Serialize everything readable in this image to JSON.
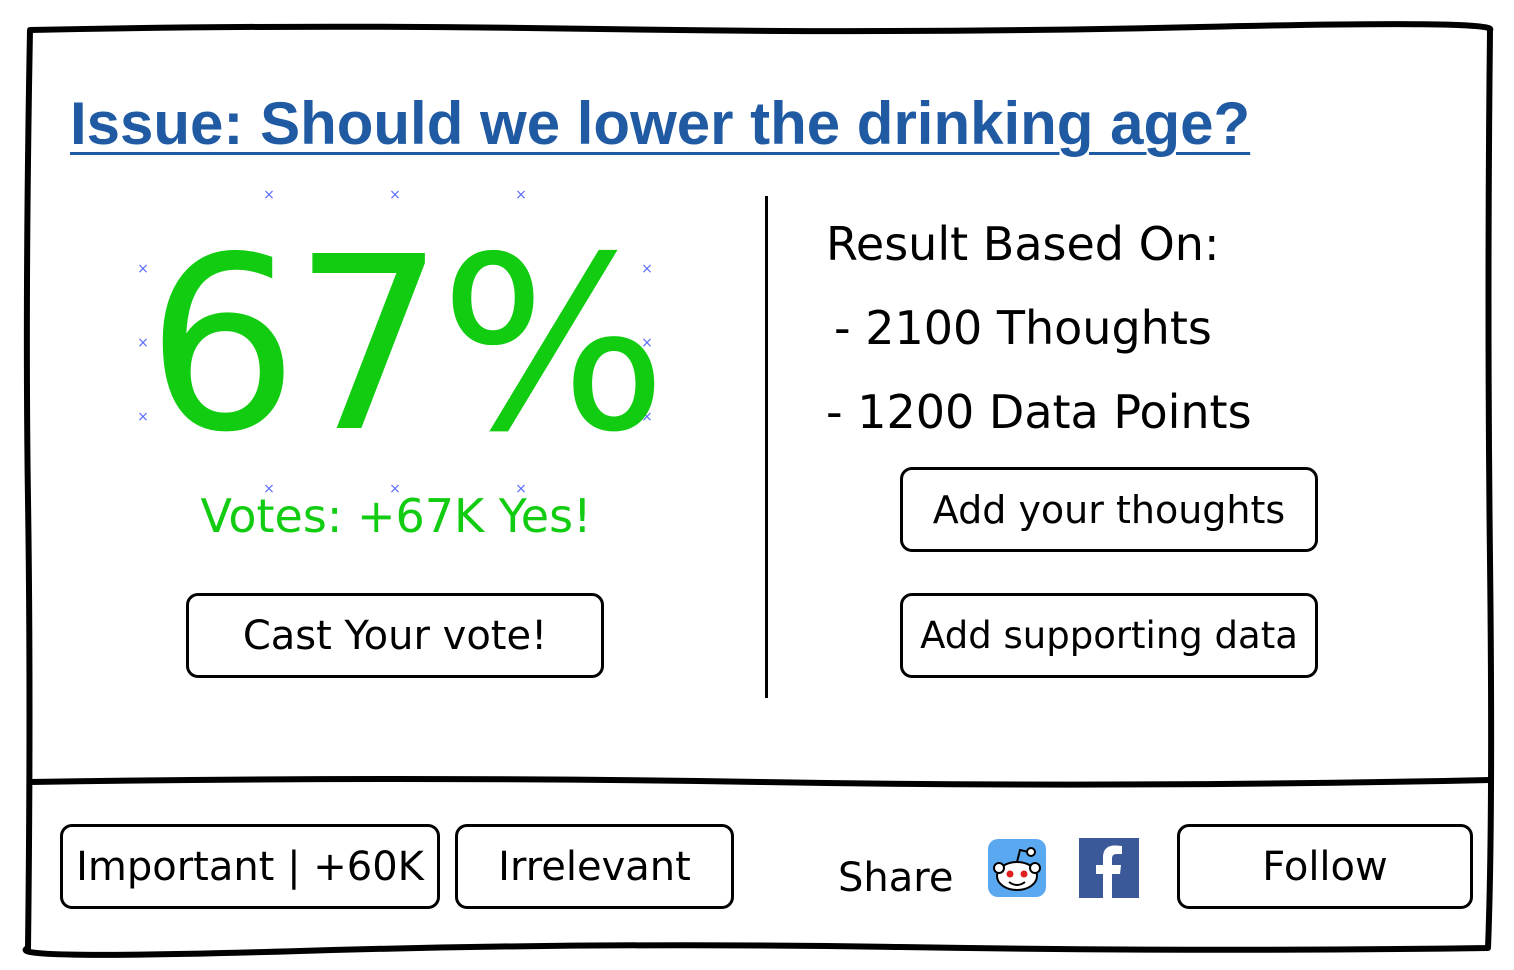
{
  "issue": {
    "title": "Issue: Should we lower the drinking age?"
  },
  "result": {
    "percent": "67%",
    "votes_text": "Votes: +67K Yes!",
    "color": "#11cc11"
  },
  "actions": {
    "cast_vote_label": "Cast Your vote!",
    "add_thoughts_label": "Add your thoughts",
    "add_data_label": "Add supporting data"
  },
  "basis": {
    "heading": "Result Based On:",
    "thoughts_line": "- 2100 Thoughts",
    "data_line": "- 1200 Data Points"
  },
  "footer": {
    "important_label": "Important | +60K",
    "irrelevant_label": "Irrelevant",
    "share_label": "Share",
    "follow_label": "Follow"
  },
  "icons": {
    "reddit": "reddit-icon",
    "facebook": "facebook-icon"
  },
  "colors": {
    "title": "#1f5aa3",
    "accent_green": "#11cc11",
    "facebook_blue": "#3b5998",
    "reddit_bg": "#5aa9f0"
  }
}
